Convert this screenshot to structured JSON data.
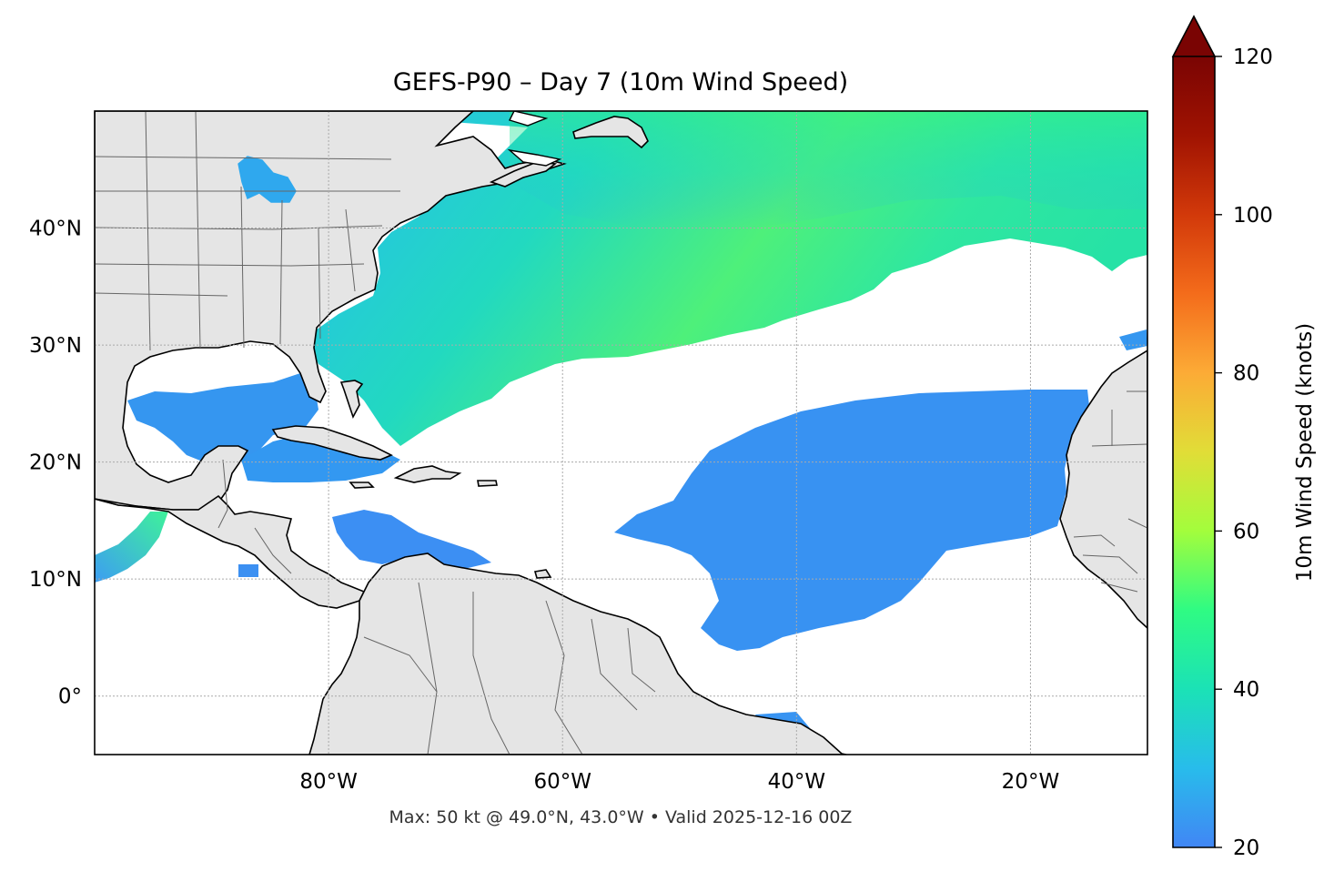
{
  "title": "GEFS-P90 – Day 7 (10m Wind Speed)",
  "footer": "Max: 50 kt @ 49.0°N, 43.0°W • Valid 2025-12-16 00Z",
  "map": {
    "lon_range": [
      -100,
      -10
    ],
    "lat_range": [
      -5,
      50
    ],
    "lon_ticks": [
      {
        "value": -80,
        "label": "80°W"
      },
      {
        "value": -60,
        "label": "60°W"
      },
      {
        "value": -40,
        "label": "40°W"
      },
      {
        "value": -20,
        "label": "20°W"
      }
    ],
    "lat_ticks": [
      {
        "value": 40,
        "label": "40°N"
      },
      {
        "value": 30,
        "label": "30°N"
      },
      {
        "value": 20,
        "label": "20°N"
      },
      {
        "value": 10,
        "label": "10°N"
      },
      {
        "value": 0,
        "label": "0°"
      }
    ],
    "gridlines": true,
    "land_color": "#e5e5e5",
    "coast_color": "#000000",
    "border_color": "#666666",
    "ocean_color": "#ffffff"
  },
  "colorbar": {
    "label": "10m Wind Speed (knots)",
    "range": [
      20,
      120
    ],
    "extend": "max",
    "ticks": [
      {
        "value": 20,
        "label": "20"
      },
      {
        "value": 40,
        "label": "40"
      },
      {
        "value": 60,
        "label": "60"
      },
      {
        "value": 80,
        "label": "80"
      },
      {
        "value": 100,
        "label": "100"
      },
      {
        "value": 120,
        "label": "120"
      }
    ],
    "colors": [
      "#4186f5",
      "#28bceb",
      "#1be2b6",
      "#2ffb83",
      "#a3fd3c",
      "#e1dd37",
      "#fcab36",
      "#f46c1b",
      "#d2390a",
      "#a01302",
      "#7a0403"
    ]
  }
}
